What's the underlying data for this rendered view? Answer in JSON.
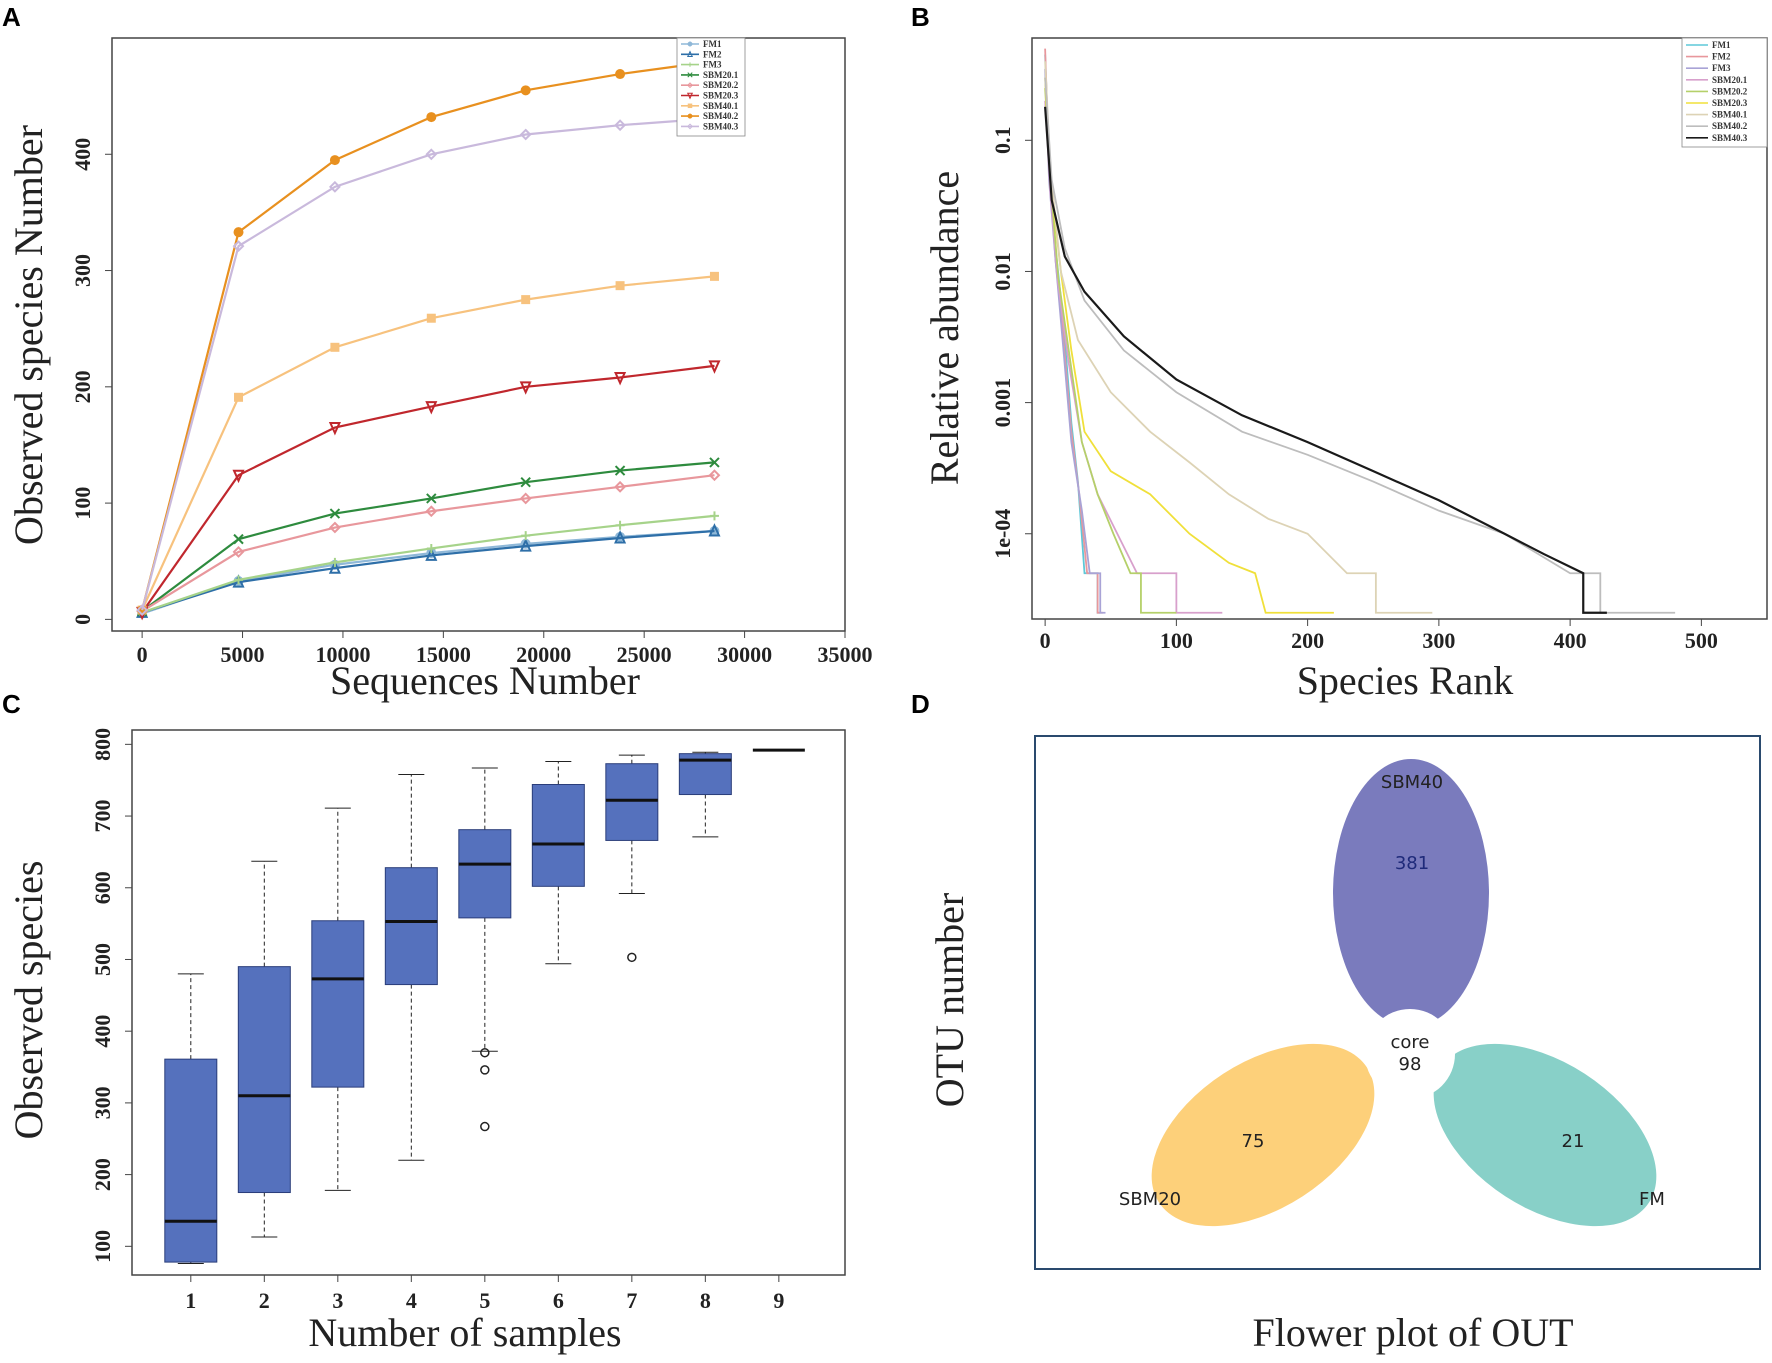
{
  "panels": {
    "a": "A",
    "b": "B",
    "c": "C",
    "d": "D"
  },
  "colors": {
    "FM1": "#8fb8d8",
    "FM2": "#2e6fa8",
    "FM3": "#a6d38a",
    "SBM20.1": "#2e8b3e",
    "SBM20.2": "#e8979c",
    "SBM20.3": "#c0272d",
    "SBM40.1": "#f7c27e",
    "SBM40.2": "#e8901f",
    "SBM40.3": "#c9b9dc",
    "box_fill": "#5571bd",
    "venn_sbm40": "#7a7bbd",
    "venn_sbm20": "#fdd07a",
    "venn_fm": "#88d0c8",
    "frame_d": "#2a4a6e"
  },
  "chart_data": [
    {
      "type": "line",
      "title": "",
      "xlabel": "Sequences Number",
      "ylabel": "Observed species Number",
      "xlim": [
        -1500,
        35000
      ],
      "ylim": [
        -10,
        500
      ],
      "xticks": [
        "0",
        "5000",
        "10000",
        "15000",
        "20000",
        "25000",
        "30000",
        "35000"
      ],
      "yticks": [
        "0",
        "100",
        "200",
        "300",
        "400"
      ],
      "legend_position": "top-right",
      "x": [
        0,
        4800,
        9600,
        14400,
        19100,
        23800,
        28500
      ],
      "series": [
        {
          "name": "FM1",
          "marker": "circle",
          "values": [
            5,
            33,
            47,
            57,
            65,
            71,
            76
          ]
        },
        {
          "name": "FM2",
          "marker": "triangle",
          "values": [
            6,
            32,
            44,
            55,
            63,
            70,
            76
          ]
        },
        {
          "name": "FM3",
          "marker": "plus",
          "values": [
            6,
            34,
            49,
            61,
            72,
            81,
            89
          ]
        },
        {
          "name": "SBM20.1",
          "marker": "x",
          "values": [
            7,
            69,
            91,
            104,
            118,
            128,
            135
          ]
        },
        {
          "name": "SBM20.2",
          "marker": "diamond",
          "values": [
            7,
            58,
            79,
            93,
            104,
            114,
            124
          ]
        },
        {
          "name": "SBM20.3",
          "marker": "triangle-down",
          "values": [
            6,
            124,
            165,
            183,
            200,
            208,
            218
          ]
        },
        {
          "name": "SBM40.1",
          "marker": "square",
          "values": [
            8,
            191,
            234,
            259,
            275,
            287,
            295
          ]
        },
        {
          "name": "SBM40.2",
          "marker": "circle",
          "values": [
            8,
            333,
            395,
            432,
            455,
            469,
            480
          ]
        },
        {
          "name": "SBM40.3",
          "marker": "diamond",
          "values": [
            8,
            321,
            372,
            400,
            417,
            425,
            431
          ]
        }
      ]
    },
    {
      "type": "line",
      "title": "",
      "xlabel": "Species Rank",
      "ylabel": "Relative abundance",
      "yscale": "log",
      "xlim": [
        -10,
        550
      ],
      "ylim_log10": [
        -4.65,
        -0.22
      ],
      "xticks": [
        "0",
        "100",
        "200",
        "300",
        "400",
        "500"
      ],
      "ytick_labels": [
        "0.1",
        "0.01",
        "0.001",
        "1e-04"
      ],
      "ytick_values": [
        0.1,
        0.01,
        0.001,
        0.0001
      ],
      "legend_position": "top-right",
      "series": [
        {
          "name": "FM1",
          "color": "#5ec8d8",
          "points": [
            [
              0,
              0.45
            ],
            [
              3,
              0.07
            ],
            [
              8,
              0.015
            ],
            [
              14,
              0.004
            ],
            [
              20,
              0.0007
            ],
            [
              25,
              0.00025
            ],
            [
              30,
              5e-05
            ],
            [
              40,
              5e-05
            ],
            [
              40,
              2.5e-05
            ],
            [
              42,
              2.5e-05
            ]
          ]
        },
        {
          "name": "FM2",
          "color": "#e8979c",
          "points": [
            [
              0,
              0.5
            ],
            [
              3,
              0.06
            ],
            [
              8,
              0.012
            ],
            [
              14,
              0.003
            ],
            [
              20,
              0.0006
            ],
            [
              26,
              0.0002
            ],
            [
              32,
              5e-05
            ],
            [
              40,
              5e-05
            ],
            [
              40,
              2.5e-05
            ],
            [
              44,
              2.5e-05
            ]
          ]
        },
        {
          "name": "FM3",
          "color": "#a9a3d6",
          "points": [
            [
              0,
              0.35
            ],
            [
              3,
              0.05
            ],
            [
              8,
              0.012
            ],
            [
              14,
              0.0025
            ],
            [
              20,
              0.0005
            ],
            [
              28,
              0.00015
            ],
            [
              34,
              5e-05
            ],
            [
              42,
              5e-05
            ],
            [
              42,
              2.5e-05
            ],
            [
              46,
              2.5e-05
            ]
          ]
        },
        {
          "name": "SBM20.1",
          "color": "#d8a0cc",
          "points": [
            [
              0,
              0.2
            ],
            [
              4,
              0.04
            ],
            [
              10,
              0.008
            ],
            [
              18,
              0.002
            ],
            [
              28,
              0.0005
            ],
            [
              40,
              0.0002
            ],
            [
              55,
              0.0001
            ],
            [
              70,
              5e-05
            ],
            [
              100,
              5e-05
            ],
            [
              100,
              2.5e-05
            ],
            [
              135,
              2.5e-05
            ]
          ]
        },
        {
          "name": "SBM20.2",
          "color": "#b5d06a",
          "points": [
            [
              0,
              0.25
            ],
            [
              4,
              0.05
            ],
            [
              10,
              0.009
            ],
            [
              18,
              0.0025
            ],
            [
              28,
              0.0005
            ],
            [
              40,
              0.0002
            ],
            [
              52,
              0.0001
            ],
            [
              65,
              5e-05
            ],
            [
              73,
              5e-05
            ],
            [
              73,
              2.5e-05
            ],
            [
              100,
              2.5e-05
            ]
          ]
        },
        {
          "name": "SBM20.3",
          "color": "#f0e03a",
          "points": [
            [
              0,
              0.3
            ],
            [
              4,
              0.05
            ],
            [
              12,
              0.01
            ],
            [
              20,
              0.0025
            ],
            [
              30,
              0.0006
            ],
            [
              50,
              0.0003
            ],
            [
              80,
              0.0002
            ],
            [
              110,
              0.0001
            ],
            [
              140,
              6e-05
            ],
            [
              160,
              5e-05
            ],
            [
              168,
              2.5e-05
            ],
            [
              220,
              2.5e-05
            ]
          ]
        },
        {
          "name": "SBM40.1",
          "color": "#ddd3b5",
          "points": [
            [
              0,
              0.4
            ],
            [
              4,
              0.06
            ],
            [
              12,
              0.01
            ],
            [
              25,
              0.003
            ],
            [
              50,
              0.0012
            ],
            [
              80,
              0.0006
            ],
            [
              110,
              0.00035
            ],
            [
              140,
              0.0002
            ],
            [
              170,
              0.00013
            ],
            [
              200,
              0.0001
            ],
            [
              230,
              5e-05
            ],
            [
              252,
              5e-05
            ],
            [
              252,
              2.5e-05
            ],
            [
              295,
              2.5e-05
            ]
          ]
        },
        {
          "name": "SBM40.2",
          "color": "#bdbdbd",
          "points": [
            [
              0,
              0.3
            ],
            [
              5,
              0.05
            ],
            [
              15,
              0.015
            ],
            [
              30,
              0.006
            ],
            [
              60,
              0.0025
            ],
            [
              100,
              0.0012
            ],
            [
              150,
              0.0006
            ],
            [
              200,
              0.0004
            ],
            [
              250,
              0.00025
            ],
            [
              300,
              0.00015
            ],
            [
              350,
              0.0001
            ],
            [
              400,
              5e-05
            ],
            [
              423,
              5e-05
            ],
            [
              423,
              2.5e-05
            ],
            [
              480,
              2.5e-05
            ]
          ]
        },
        {
          "name": "SBM40.3",
          "color": "#1a1a1a",
          "points": [
            [
              0,
              0.18
            ],
            [
              5,
              0.035
            ],
            [
              15,
              0.013
            ],
            [
              30,
              0.007
            ],
            [
              60,
              0.0032
            ],
            [
              100,
              0.0015
            ],
            [
              150,
              0.0008
            ],
            [
              200,
              0.0005
            ],
            [
              250,
              0.0003
            ],
            [
              300,
              0.00018
            ],
            [
              350,
              0.0001
            ],
            [
              380,
              7e-05
            ],
            [
              410,
              5e-05
            ],
            [
              410,
              2.5e-05
            ],
            [
              428,
              2.5e-05
            ]
          ]
        }
      ]
    },
    {
      "type": "box",
      "title": "",
      "xlabel": "Number of samples",
      "ylabel": "Observed species",
      "xlim": [
        0.2,
        9.9
      ],
      "ylim": [
        60,
        820
      ],
      "xticks": [
        "1",
        "2",
        "3",
        "4",
        "5",
        "6",
        "7",
        "8",
        "9"
      ],
      "yticks": [
        "100",
        "200",
        "300",
        "400",
        "500",
        "600",
        "700",
        "800"
      ],
      "boxes": [
        {
          "label": "1",
          "min": 76,
          "q1": 78,
          "median": 135,
          "q3": 361,
          "max": 480,
          "outliers": []
        },
        {
          "label": "2",
          "min": 113,
          "q1": 175,
          "median": 310,
          "q3": 490,
          "max": 637,
          "outliers": []
        },
        {
          "label": "3",
          "min": 178,
          "q1": 322,
          "median": 473,
          "q3": 554,
          "max": 711,
          "outliers": []
        },
        {
          "label": "4",
          "min": 220,
          "q1": 465,
          "median": 553,
          "q3": 628,
          "max": 758,
          "outliers": []
        },
        {
          "label": "5",
          "min": 372,
          "q1": 558,
          "median": 633,
          "q3": 681,
          "max": 767,
          "outliers": [
            370,
            346,
            267
          ]
        },
        {
          "label": "6",
          "min": 494,
          "q1": 602,
          "median": 661,
          "q3": 744,
          "max": 776,
          "outliers": []
        },
        {
          "label": "7",
          "min": 592,
          "q1": 666,
          "median": 722,
          "q3": 773,
          "max": 785,
          "outliers": [
            503
          ]
        },
        {
          "label": "8",
          "min": 671,
          "q1": 730,
          "median": 778,
          "q3": 787,
          "max": 789,
          "outliers": []
        },
        {
          "label": "9",
          "min": 792,
          "q1": 792,
          "median": 792,
          "q3": 792,
          "max": 792,
          "outliers": []
        }
      ]
    },
    {
      "type": "flower",
      "title": "Flower plot of OUT",
      "ylabel": "OTU number",
      "core_label": "core",
      "core_value": "98",
      "petals": [
        {
          "name": "SBM40",
          "value": "381"
        },
        {
          "name": "SBM20",
          "value": "75"
        },
        {
          "name": "FM",
          "value": "21"
        }
      ]
    }
  ]
}
